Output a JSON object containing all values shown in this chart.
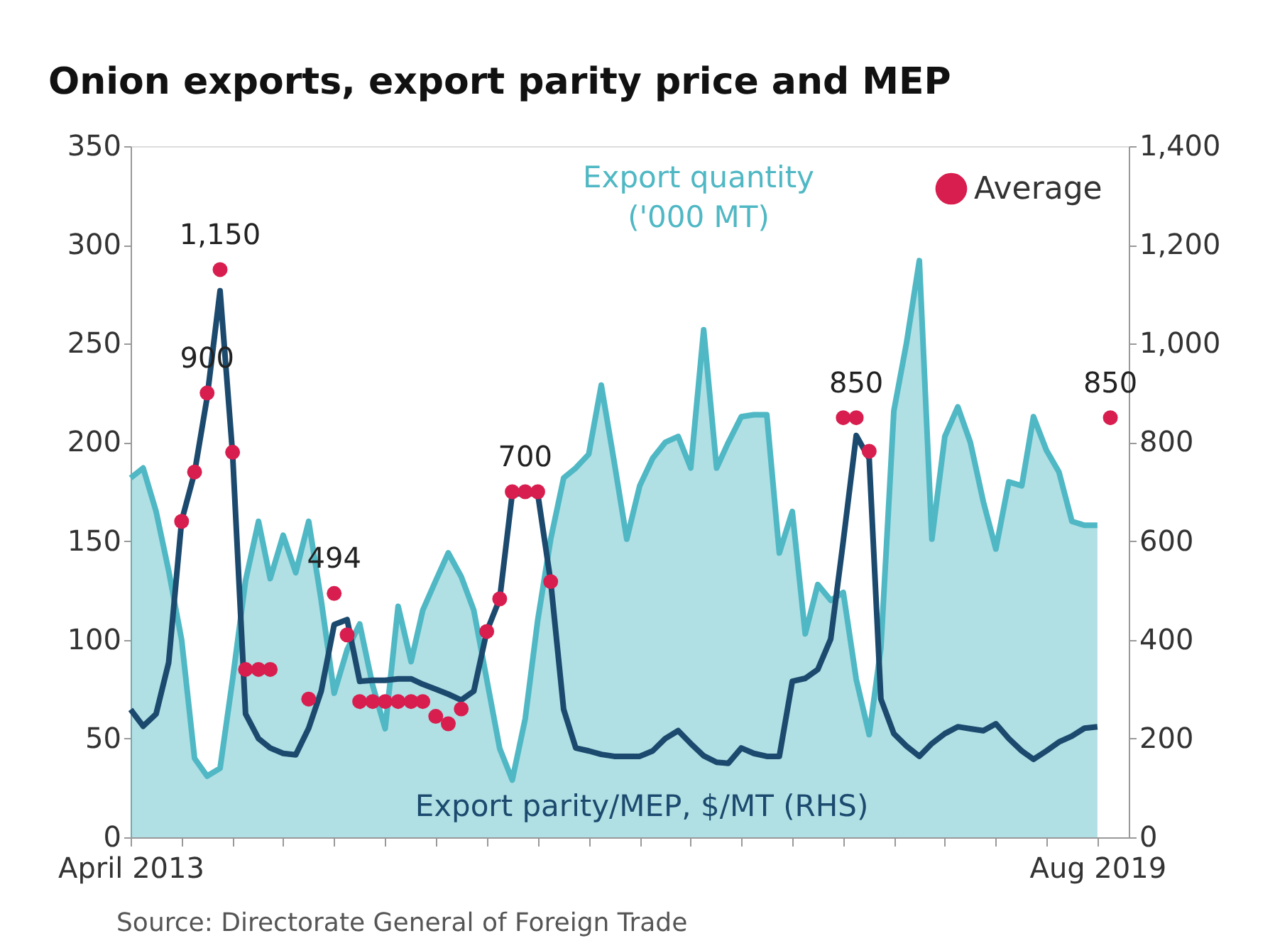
{
  "chart_data": {
    "type": "area",
    "title": "Onion exports, export parity price and MEP",
    "x": [
      "2013-04",
      "2013-05",
      "2013-06",
      "2013-07",
      "2013-08",
      "2013-09",
      "2013-10",
      "2013-11",
      "2013-12",
      "2014-01",
      "2014-02",
      "2014-03",
      "2014-04",
      "2014-05",
      "2014-06",
      "2014-07",
      "2014-08",
      "2014-09",
      "2014-10",
      "2014-11",
      "2014-12",
      "2015-01",
      "2015-02",
      "2015-03",
      "2015-04",
      "2015-05",
      "2015-06",
      "2015-07",
      "2015-08",
      "2015-09",
      "2015-10",
      "2015-11",
      "2015-12",
      "2016-01",
      "2016-02",
      "2016-03",
      "2016-04",
      "2016-05",
      "2016-06",
      "2016-07",
      "2016-08",
      "2016-09",
      "2016-10",
      "2016-11",
      "2016-12",
      "2017-01",
      "2017-02",
      "2017-03",
      "2017-04",
      "2017-05",
      "2017-06",
      "2017-07",
      "2017-08",
      "2017-09",
      "2017-10",
      "2017-11",
      "2017-12",
      "2018-01",
      "2018-02",
      "2018-03",
      "2018-04",
      "2018-05",
      "2018-06",
      "2018-07",
      "2018-08",
      "2018-09",
      "2018-10",
      "2018-11",
      "2018-12",
      "2019-01",
      "2019-02",
      "2019-03",
      "2019-04",
      "2019-05",
      "2019-06",
      "2019-07",
      "2019-08"
    ],
    "series": [
      {
        "name": "Export quantity ('000 MT)",
        "color": "#4fb8c4",
        "values": [
          182,
          187,
          165,
          135,
          100,
          40,
          31,
          35,
          80,
          130,
          160,
          131,
          153,
          134,
          160,
          120,
          73,
          95,
          108,
          77,
          55,
          117,
          89,
          115,
          130,
          144,
          132,
          115,
          80,
          45,
          29,
          60,
          110,
          151,
          182,
          187,
          194,
          229,
          190,
          151,
          178,
          192,
          200,
          203,
          187,
          257,
          187,
          200,
          213,
          214,
          214,
          144,
          165,
          103,
          128,
          120,
          124,
          80,
          52,
          96,
          216,
          250,
          292,
          151,
          203,
          218,
          200,
          170,
          146,
          180,
          178,
          213,
          196,
          185,
          160,
          158,
          158
        ]
      },
      {
        "name": "Export parity/MEP, $/MT (RHS)",
        "type": "line",
        "axis": "y2",
        "color": "#1b4a6e",
        "values": [
          259,
          225,
          250,
          354,
          641,
          739,
          891,
          1107,
          776,
          250,
          200,
          181,
          170,
          167,
          221,
          296,
          431,
          441,
          316,
          318,
          318,
          321,
          321,
          310,
          300,
          290,
          278,
          296,
          417,
          483,
          696,
          696,
          696,
          518,
          259,
          181,
          175,
          168,
          164,
          164,
          164,
          175,
          200,
          216,
          190,
          165,
          152,
          150,
          181,
          170,
          164,
          164,
          316,
          322,
          340,
          402,
          600,
          814,
          767,
          280,
          210,
          185,
          164,
          190,
          210,
          224,
          220,
          216,
          230,
          200,
          175,
          158,
          175,
          193,
          205,
          221,
          224
        ]
      },
      {
        "name": "Average",
        "type": "scatter",
        "axis": "y2",
        "color": "#d81e4f",
        "marker": "circle",
        "x": [
          "2013-08",
          "2013-09",
          "2013-10",
          "2013-11",
          "2013-12",
          "2014-01",
          "2014-02",
          "2014-03",
          "2014-06",
          "2014-08",
          "2014-09",
          "2014-10",
          "2014-11",
          "2014-12",
          "2015-01",
          "2015-02",
          "2015-03",
          "2015-04",
          "2015-05",
          "2015-06",
          "2015-08",
          "2015-09",
          "2015-10",
          "2015-11",
          "2015-12",
          "2016-01",
          "2017-12",
          "2018-01",
          "2018-02",
          "2019-09"
        ],
        "values": [
          640,
          740,
          900,
          1150,
          780,
          340,
          340,
          340,
          280,
          494,
          410,
          275,
          275,
          275,
          275,
          275,
          275,
          245,
          230,
          260,
          417,
          483,
          700,
          700,
          700,
          518,
          850,
          850,
          782,
          850
        ],
        "value_labels": [
          null,
          null,
          "900",
          "1,150",
          null,
          null,
          null,
          null,
          null,
          "494",
          null,
          null,
          null,
          null,
          null,
          null,
          null,
          null,
          null,
          null,
          null,
          null,
          null,
          "700",
          null,
          null,
          null,
          "850",
          null,
          "850"
        ]
      }
    ],
    "xlim": [
      "2013-04",
      "2019-10-15"
    ],
    "xticks": [
      {
        "value": "2013-04",
        "label": "April 2013"
      },
      {
        "value": "2013-08",
        "label": null
      },
      {
        "value": "2013-12",
        "label": null
      },
      {
        "value": "2014-04",
        "label": null
      },
      {
        "value": "2014-08",
        "label": null
      },
      {
        "value": "2014-12",
        "label": null
      },
      {
        "value": "2015-04",
        "label": null
      },
      {
        "value": "2015-08",
        "label": null
      },
      {
        "value": "2015-12",
        "label": null
      },
      {
        "value": "2016-04",
        "label": null
      },
      {
        "value": "2016-08",
        "label": null
      },
      {
        "value": "2016-12",
        "label": null
      },
      {
        "value": "2017-04",
        "label": null
      },
      {
        "value": "2017-08",
        "label": null
      },
      {
        "value": "2017-12",
        "label": null
      },
      {
        "value": "2018-04",
        "label": null
      },
      {
        "value": "2018-08",
        "label": null
      },
      {
        "value": "2018-12",
        "label": null
      },
      {
        "value": "2019-04",
        "label": null
      },
      {
        "value": "2019-08",
        "label": "Aug 2019"
      }
    ],
    "ylim": [
      0,
      350
    ],
    "yticks": [
      0,
      50,
      100,
      150,
      200,
      250,
      300,
      350
    ],
    "y2lim": [
      0,
      1400
    ],
    "y2ticks": [
      0,
      200,
      400,
      600,
      800,
      {
        "value": 1000,
        "label": "1,000"
      },
      {
        "value": 1200,
        "label": "1,200"
      },
      {
        "value": 1400,
        "label": "1,400"
      }
    ],
    "legend": "top right",
    "grid": false,
    "annotations": [
      "Source: Directorate General of Foreign Trade"
    ]
  }
}
